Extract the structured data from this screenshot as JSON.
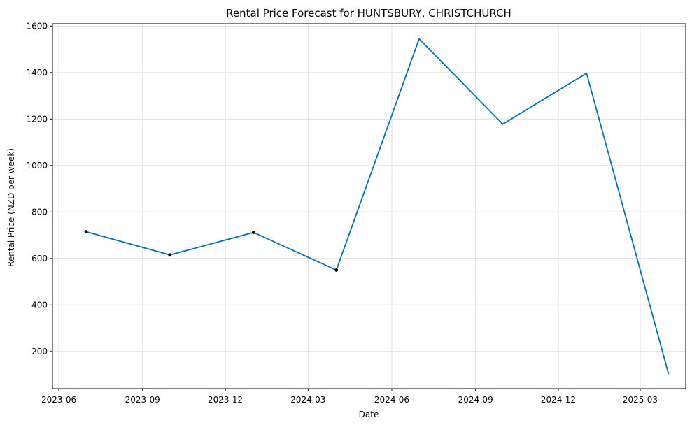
{
  "chart_data": {
    "type": "line",
    "title": "Rental Price Forecast for HUNTSBURY, CHRISTCHURCH",
    "xlabel": "Date",
    "ylabel": "Rental Price (NZD per week)",
    "x_axis_type": "date",
    "xlim": [
      "2023-05-25",
      "2025-04-20"
    ],
    "ylim": [
      40,
      1610
    ],
    "grid": true,
    "x_ticks": [
      "2023-06",
      "2023-09",
      "2023-12",
      "2024-03",
      "2024-06",
      "2024-09",
      "2024-12",
      "2025-03"
    ],
    "y_ticks": [
      200,
      400,
      600,
      800,
      1000,
      1200,
      1400,
      1600
    ],
    "series": [
      {
        "color": "#0072B2",
        "x": [
          "2023-07-01",
          "2023-10-01",
          "2024-01-01",
          "2024-04-01",
          "2024-07-01",
          "2024-10-01",
          "2025-01-01",
          "2025-04-01"
        ],
        "y": [
          715,
          615,
          712,
          550,
          1545,
          1178,
          1397,
          105
        ]
      }
    ],
    "observed_points": {
      "color": "#000000",
      "x": [
        "2023-07-01",
        "2023-10-01",
        "2024-01-01",
        "2024-04-01"
      ],
      "y": [
        715,
        615,
        712,
        550
      ]
    }
  }
}
